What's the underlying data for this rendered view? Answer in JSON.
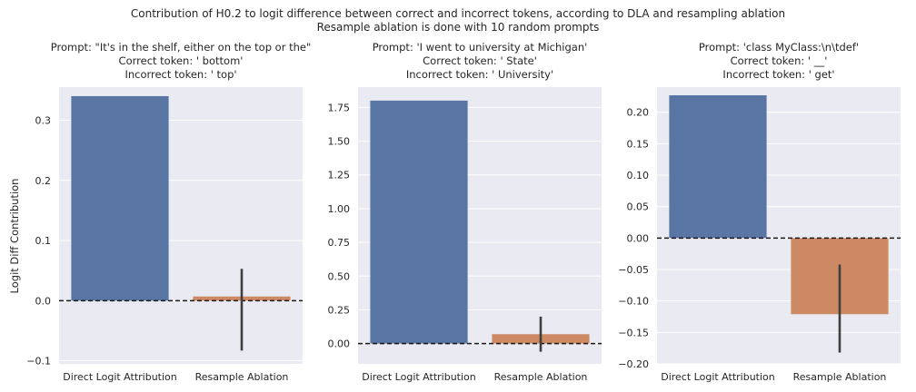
{
  "figure": {
    "suptitle_line1": "Contribution of H0.2 to logit difference between correct and incorrect tokens, according to DLA and resampling ablation",
    "suptitle_line2": "Resample ablation is done with 10 random prompts",
    "ylabel": "Logit Diff Contribution"
  },
  "colors": {
    "dla_bar": "#5975a4",
    "resample_bar": "#cc8963",
    "axes_bg": "#eaeaf2",
    "grid": "#ffffff",
    "error_bar": "#3f3f3f",
    "zero_line": "#1a1a1a"
  },
  "chart_data": [
    {
      "type": "bar",
      "title_lines": [
        "Prompt: \"It's in the shelf, either on the top or the\"",
        "Correct token: ' bottom'",
        "Incorrect token: ' top'"
      ],
      "categories": [
        "Direct Logit Attribution",
        "Resample Ablation"
      ],
      "values": [
        0.34,
        0.007
      ],
      "error_bars": [
        null,
        [
          -0.083,
          0.053
        ]
      ],
      "ylim": [
        -0.105,
        0.355
      ],
      "yticks": [
        -0.1,
        0.0,
        0.1,
        0.2,
        0.3
      ],
      "ytick_labels": [
        "−0.1",
        "0.0",
        "0.1",
        "0.2",
        "0.3"
      ],
      "ylabel": "Logit Diff Contribution",
      "reference_line": 0,
      "grid": true
    },
    {
      "type": "bar",
      "title_lines": [
        "Prompt: 'I went to university at Michigan'",
        "Correct token: ' State'",
        "Incorrect token: ' University'"
      ],
      "categories": [
        "Direct Logit Attribution",
        "Resample Ablation"
      ],
      "values": [
        1.8,
        0.07
      ],
      "error_bars": [
        null,
        [
          -0.06,
          0.2
        ]
      ],
      "ylim": [
        -0.15,
        1.9
      ],
      "yticks": [
        0.0,
        0.25,
        0.5,
        0.75,
        1.0,
        1.25,
        1.5,
        1.75
      ],
      "ytick_labels": [
        "0.00",
        "0.25",
        "0.50",
        "0.75",
        "1.00",
        "1.25",
        "1.50",
        "1.75"
      ],
      "ylabel": "",
      "reference_line": 0,
      "grid": true
    },
    {
      "type": "bar",
      "title_lines": [
        "Prompt: 'class MyClass:\\n\\tdef'",
        "Correct token: ' __'",
        "Incorrect token: ' get'"
      ],
      "categories": [
        "Direct Logit Attribution",
        "Resample Ablation"
      ],
      "values": [
        0.227,
        -0.121
      ],
      "error_bars": [
        null,
        [
          -0.182,
          -0.042
        ]
      ],
      "ylim": [
        -0.2,
        0.24
      ],
      "yticks": [
        -0.2,
        -0.15,
        -0.1,
        -0.05,
        0.0,
        0.05,
        0.1,
        0.15,
        0.2
      ],
      "ytick_labels": [
        "−0.20",
        "−0.15",
        "−0.10",
        "−0.05",
        "0.00",
        "0.05",
        "0.10",
        "0.15",
        "0.20"
      ],
      "ylabel": "",
      "reference_line": 0,
      "grid": true
    }
  ]
}
